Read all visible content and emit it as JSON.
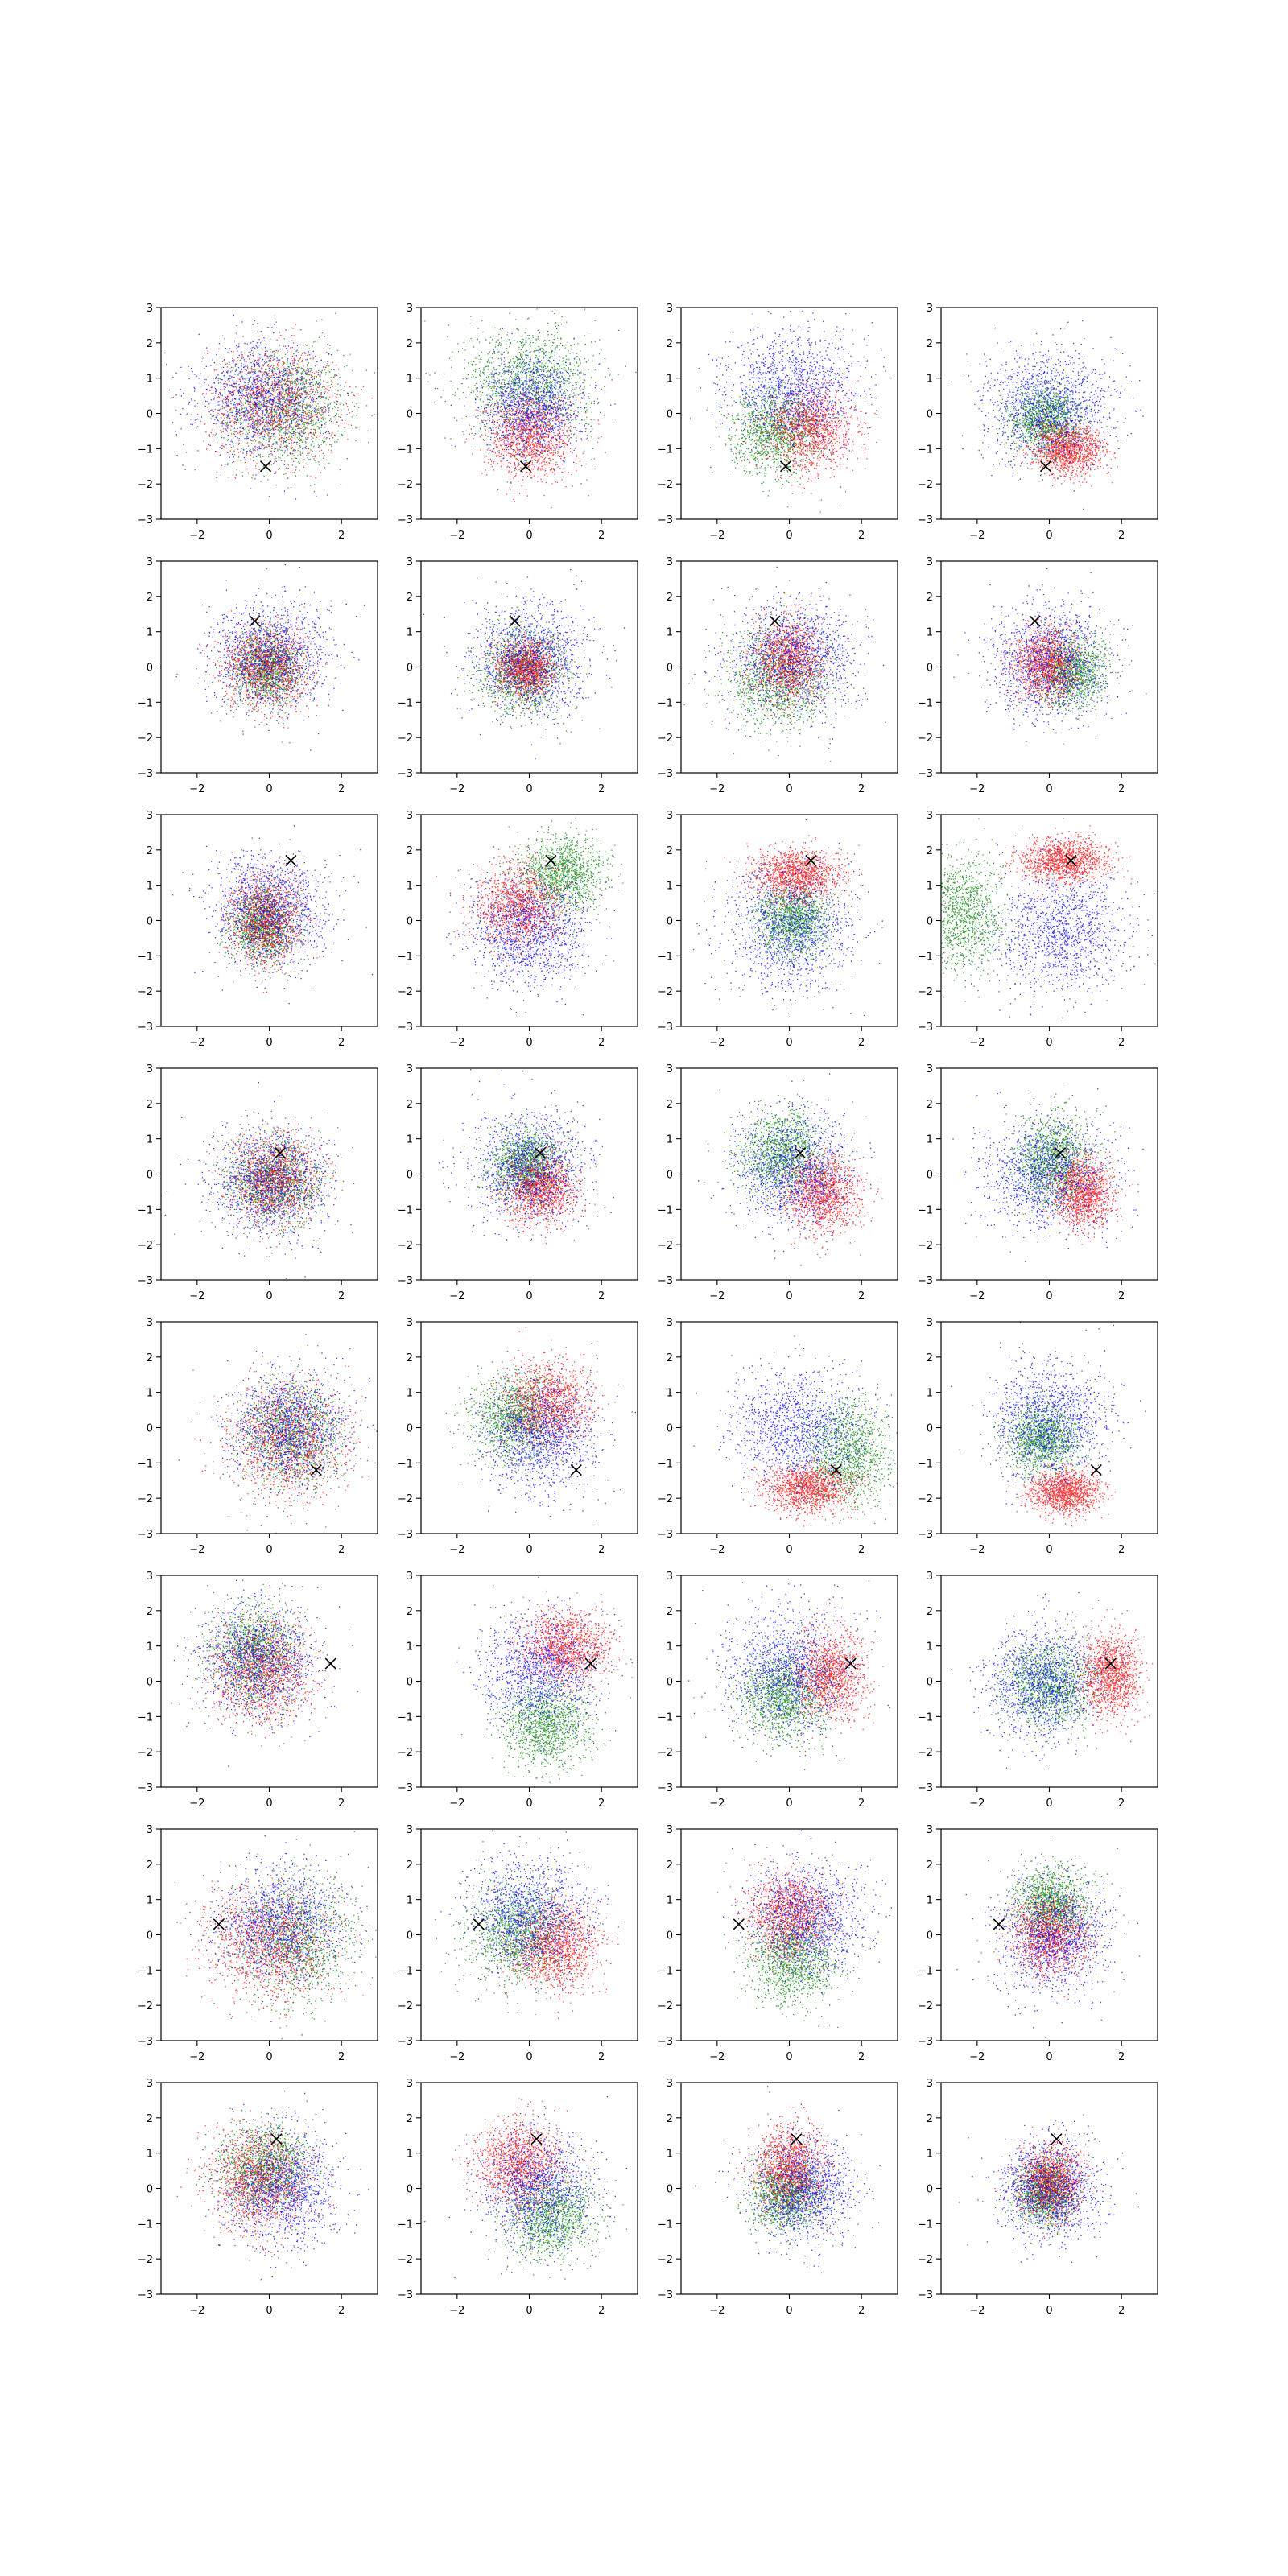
{
  "figure": {
    "rows": 8,
    "cols": 4,
    "colors": {
      "blue": "#0000ff",
      "red": "#ff0000",
      "green": "#008000",
      "marker": "#000000"
    }
  },
  "chart_data": {
    "type": "scatter",
    "description_of_layout": "grid of 8x4 scatter panels; three clouds (blue, red, green) per panel; black x marks a query point shared by each row",
    "xlim": [
      -3,
      3
    ],
    "ylim": [
      -3,
      3
    ],
    "xticks": [
      -2,
      0,
      2
    ],
    "yticks": [
      -3,
      -2,
      -1,
      0,
      1,
      2,
      3
    ],
    "xtick_labels": [
      "−2",
      "0",
      "2"
    ],
    "ytick_labels": [
      "−3",
      "−2",
      "−1",
      "0",
      "1",
      "2",
      "3"
    ],
    "grid": false,
    "legend": "none",
    "rows": [
      {
        "marker": [
          -0.1,
          -1.5
        ],
        "panels": [
          {
            "blue": [
              -0.2,
              0.4,
              0.9,
              0.8
            ],
            "red": [
              0.1,
              0.3,
              0.9,
              0.8
            ],
            "green": [
              0.5,
              0.1,
              0.8,
              0.8
            ]
          },
          {
            "blue": [
              0.1,
              0.2,
              0.7,
              0.7
            ],
            "red": [
              0.0,
              -0.6,
              0.6,
              0.6
            ],
            "green": [
              0.0,
              0.9,
              0.9,
              0.8
            ]
          },
          {
            "blue": [
              0.1,
              0.7,
              0.9,
              0.8
            ],
            "red": [
              0.6,
              -0.4,
              0.6,
              0.6
            ],
            "green": [
              -0.4,
              -0.5,
              0.6,
              0.6
            ]
          },
          {
            "blue": [
              0.0,
              0.2,
              0.9,
              0.8
            ],
            "red": [
              0.5,
              -1.0,
              0.5,
              0.35
            ],
            "green": [
              -0.1,
              -0.2,
              0.5,
              0.5
            ]
          }
        ]
      },
      {
        "marker": [
          -0.4,
          1.3
        ],
        "panels": [
          {
            "blue": [
              0.0,
              0.3,
              0.8,
              0.8
            ],
            "red": [
              -0.1,
              0.0,
              0.6,
              0.6
            ],
            "green": [
              -0.1,
              0.0,
              0.45,
              0.5
            ]
          },
          {
            "blue": [
              0.0,
              0.2,
              0.8,
              0.8
            ],
            "red": [
              -0.1,
              0.0,
              0.4,
              0.4
            ],
            "green": [
              -0.2,
              -0.1,
              0.6,
              0.6
            ]
          },
          {
            "blue": [
              0.1,
              0.3,
              0.9,
              0.8
            ],
            "red": [
              0.0,
              0.2,
              0.5,
              0.6
            ],
            "green": [
              -0.3,
              -0.4,
              0.7,
              0.7
            ]
          },
          {
            "blue": [
              0.0,
              0.2,
              0.8,
              0.8
            ],
            "red": [
              -0.1,
              0.1,
              0.45,
              0.5
            ],
            "green": [
              0.6,
              -0.1,
              0.5,
              0.5
            ]
          }
        ]
      },
      {
        "marker": [
          0.6,
          1.7
        ],
        "panels": [
          {
            "blue": [
              0.0,
              0.3,
              0.8,
              0.8
            ],
            "red": [
              -0.1,
              0.0,
              0.5,
              0.6
            ],
            "green": [
              -0.2,
              -0.1,
              0.45,
              0.5
            ]
          },
          {
            "blue": [
              0.0,
              -0.3,
              0.8,
              0.8
            ],
            "red": [
              -0.3,
              0.4,
              0.6,
              0.6
            ],
            "green": [
              0.9,
              1.3,
              0.6,
              0.55
            ]
          },
          {
            "blue": [
              0.0,
              -0.2,
              0.9,
              0.9
            ],
            "red": [
              0.2,
              1.3,
              0.6,
              0.35
            ],
            "green": [
              0.1,
              0.0,
              0.5,
              0.5
            ]
          },
          {
            "blue": [
              0.3,
              -0.3,
              0.9,
              0.9
            ],
            "red": [
              0.4,
              1.7,
              0.6,
              0.3
            ],
            "green": [
              -2.5,
              0.2,
              0.6,
              0.8
            ]
          }
        ]
      },
      {
        "marker": [
          0.3,
          0.6
        ],
        "panels": [
          {
            "blue": [
              0.0,
              -0.2,
              0.8,
              0.8
            ],
            "red": [
              0.1,
              -0.1,
              0.6,
              0.6
            ],
            "green": [
              0.1,
              -0.2,
              0.6,
              0.6
            ]
          },
          {
            "blue": [
              0.0,
              0.2,
              0.8,
              0.8
            ],
            "red": [
              0.3,
              -0.4,
              0.5,
              0.5
            ],
            "green": [
              -0.1,
              0.3,
              0.5,
              0.5
            ]
          },
          {
            "blue": [
              0.1,
              0.1,
              0.8,
              0.8
            ],
            "red": [
              0.9,
              -0.5,
              0.5,
              0.55
            ],
            "green": [
              -0.2,
              0.6,
              0.6,
              0.6
            ]
          },
          {
            "blue": [
              0.0,
              0.0,
              0.9,
              0.8
            ],
            "red": [
              0.9,
              -0.5,
              0.4,
              0.5
            ],
            "green": [
              0.1,
              0.4,
              0.5,
              0.6
            ]
          }
        ]
      },
      {
        "marker": [
          1.3,
          -1.2
        ],
        "panels": [
          {
            "blue": [
              0.5,
              0.0,
              0.8,
              0.8
            ],
            "red": [
              0.5,
              -0.3,
              0.8,
              0.8
            ],
            "green": [
              0.6,
              -0.2,
              0.7,
              0.7
            ]
          },
          {
            "blue": [
              0.3,
              -0.2,
              0.8,
              0.8
            ],
            "red": [
              0.5,
              0.7,
              0.6,
              0.6
            ],
            "green": [
              -0.4,
              0.3,
              0.6,
              0.6
            ]
          },
          {
            "blue": [
              0.2,
              0.0,
              0.9,
              0.8
            ],
            "red": [
              0.5,
              -1.7,
              0.6,
              0.35
            ],
            "green": [
              1.6,
              -0.7,
              0.6,
              0.7
            ]
          },
          {
            "blue": [
              0.0,
              0.2,
              0.8,
              0.8
            ],
            "red": [
              0.4,
              -1.8,
              0.5,
              0.3
            ],
            "green": [
              -0.2,
              -0.3,
              0.5,
              0.5
            ]
          }
        ]
      },
      {
        "marker": [
          1.7,
          0.5
        ],
        "panels": [
          {
            "blue": [
              -0.3,
              0.6,
              0.8,
              0.8
            ],
            "red": [
              -0.2,
              0.3,
              0.7,
              0.7
            ],
            "green": [
              -0.4,
              0.8,
              0.6,
              0.7
            ]
          },
          {
            "blue": [
              0.3,
              0.3,
              0.8,
              0.8
            ],
            "red": [
              1.0,
              1.0,
              0.6,
              0.5
            ],
            "green": [
              0.5,
              -1.2,
              0.6,
              0.6
            ]
          },
          {
            "blue": [
              0.0,
              0.3,
              0.9,
              0.9
            ],
            "red": [
              1.1,
              0.2,
              0.5,
              0.6
            ],
            "green": [
              -0.2,
              -0.4,
              0.6,
              0.6
            ]
          },
          {
            "blue": [
              -0.2,
              0.0,
              0.8,
              0.8
            ],
            "red": [
              1.7,
              0.2,
              0.4,
              0.6
            ],
            "green": [
              0.0,
              -0.1,
              0.6,
              0.6
            ]
          }
        ]
      },
      {
        "marker": [
          -1.4,
          0.3
        ],
        "panels": [
          {
            "blue": [
              0.3,
              0.3,
              0.9,
              0.8
            ],
            "red": [
              0.0,
              -0.2,
              0.9,
              0.8
            ],
            "green": [
              0.7,
              -0.1,
              0.8,
              0.8
            ]
          },
          {
            "blue": [
              0.0,
              0.6,
              0.8,
              0.8
            ],
            "red": [
              0.7,
              -0.3,
              0.6,
              0.6
            ],
            "green": [
              -0.3,
              0.1,
              0.7,
              0.7
            ]
          },
          {
            "blue": [
              0.5,
              0.5,
              0.8,
              0.8
            ],
            "red": [
              0.0,
              0.6,
              0.6,
              0.6
            ],
            "green": [
              0.1,
              -0.7,
              0.6,
              0.6
            ]
          },
          {
            "blue": [
              0.1,
              0.0,
              0.8,
              0.8
            ],
            "red": [
              0.0,
              0.0,
              0.55,
              0.55
            ],
            "green": [
              0.0,
              0.9,
              0.5,
              0.5
            ]
          }
        ]
      },
      {
        "marker": [
          0.2,
          1.4
        ],
        "panels": [
          {
            "blue": [
              0.3,
              0.0,
              0.8,
              0.8
            ],
            "red": [
              -0.3,
              0.2,
              0.7,
              0.7
            ],
            "green": [
              -0.1,
              0.6,
              0.6,
              0.6
            ]
          },
          {
            "blue": [
              0.2,
              0.0,
              0.8,
              0.8
            ],
            "red": [
              -0.3,
              0.7,
              0.6,
              0.6
            ],
            "green": [
              0.6,
              -0.8,
              0.6,
              0.6
            ]
          },
          {
            "blue": [
              0.4,
              0.0,
              0.7,
              0.7
            ],
            "red": [
              0.0,
              0.6,
              0.5,
              0.6
            ],
            "green": [
              -0.1,
              -0.2,
              0.5,
              0.5
            ]
          },
          {
            "blue": [
              0.0,
              0.0,
              0.7,
              0.7
            ],
            "red": [
              0.0,
              0.2,
              0.45,
              0.5
            ],
            "green": [
              -0.1,
              -0.1,
              0.4,
              0.45
            ]
          }
        ]
      }
    ]
  }
}
